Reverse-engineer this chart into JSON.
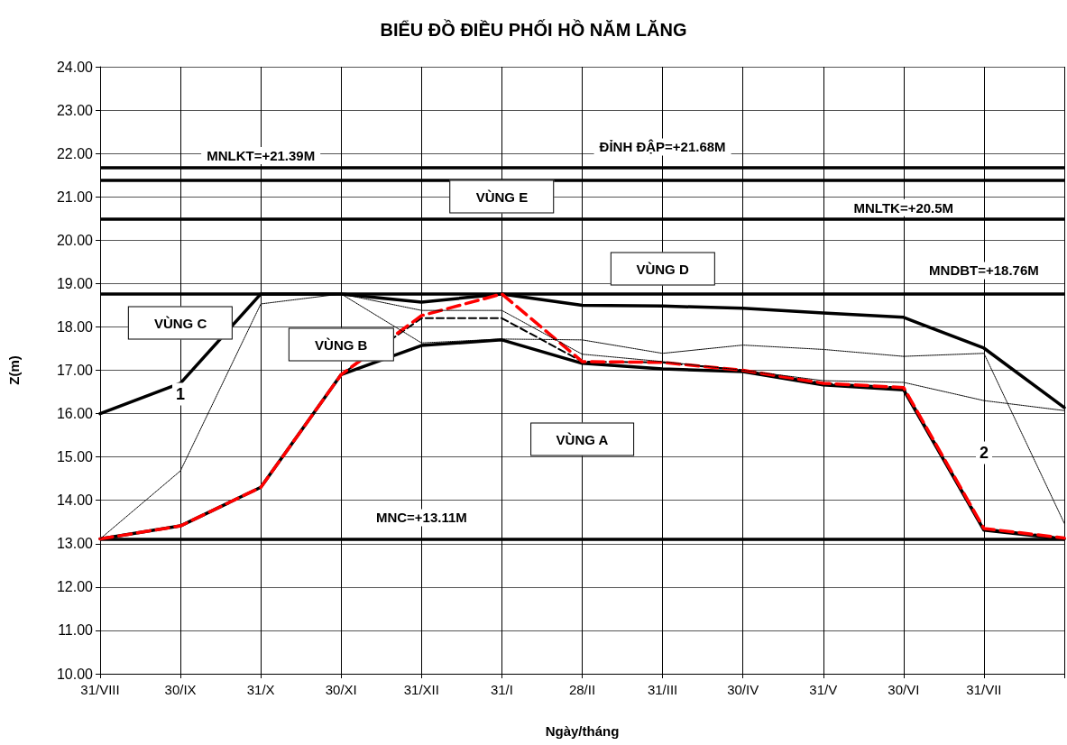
{
  "chart_data": {
    "type": "line",
    "title": "BIỂU ĐỒ ĐIỀU PHỐI HỒ NĂM LĂNG",
    "xlabel": "Ngày/tháng",
    "ylabel": "Z(m)",
    "categories": [
      "31/VIII",
      "30/IX",
      "31/X",
      "30/XI",
      "31/XII",
      "31/I",
      "28/II",
      "31/III",
      "30/IV",
      "31/V",
      "30/VI",
      "31/VII",
      null
    ],
    "series": [
      {
        "color": "#000000",
        "line_style": "solid",
        "values": [
          16.0,
          16.7,
          18.76,
          18.76,
          18.57,
          18.76,
          18.5,
          18.48,
          18.43,
          18.32,
          18.22,
          17.51,
          16.14
        ]
      },
      {
        "color": "#000000",
        "line_style": "solid",
        "values": [
          13.11,
          13.41,
          14.3,
          16.9,
          17.57,
          17.7,
          17.16,
          17.03,
          16.97,
          16.66,
          16.55,
          13.31,
          13.11
        ]
      },
      {
        "color": "#000000",
        "line_style": "dashed",
        "values": [
          13.11,
          13.41,
          14.3,
          16.9,
          18.2,
          18.2,
          17.2,
          17.18,
          17.0,
          16.7,
          16.6,
          13.35,
          13.13
        ]
      },
      {
        "color": "#ff0000",
        "line_style": "dashed",
        "values": [
          13.11,
          13.41,
          14.3,
          16.9,
          18.26,
          18.76,
          17.2,
          17.18,
          17.0,
          16.7,
          16.6,
          13.35,
          13.13
        ]
      },
      {
        "color": "#000000",
        "line_style": "dotted",
        "values": [
          13.11,
          14.68,
          18.53,
          18.76,
          18.38,
          18.38,
          17.37,
          17.2,
          17.0,
          16.76,
          16.72,
          16.3,
          16.07
        ]
      },
      {
        "color": "#000000",
        "line_style": "dotted",
        "values": [
          null,
          null,
          null,
          18.76,
          17.63,
          17.72,
          17.7,
          17.39,
          17.58,
          17.48,
          17.32,
          17.39,
          13.47
        ]
      }
    ],
    "ylim": [
      10,
      24
    ],
    "yticks": [
      {
        "value": 10,
        "label": "10.00"
      },
      {
        "value": 11,
        "label": "11.00"
      },
      {
        "value": 12,
        "label": "12.00"
      },
      {
        "value": 13,
        "label": "13.00"
      },
      {
        "value": 14,
        "label": "14.00"
      },
      {
        "value": 15,
        "label": "15.00"
      },
      {
        "value": 16,
        "label": "16.00"
      },
      {
        "value": 17,
        "label": "17.00"
      },
      {
        "value": 18,
        "label": "18.00"
      },
      {
        "value": 19,
        "label": "19.00"
      },
      {
        "value": 20,
        "label": "20.00"
      },
      {
        "value": 21,
        "label": "21.00"
      },
      {
        "value": 22,
        "label": "22.00"
      },
      {
        "value": 23,
        "label": "23.00"
      },
      {
        "value": 24,
        "label": "24.00"
      }
    ],
    "grid": true,
    "marker": "none",
    "ref_lines": [
      {
        "axis": "y",
        "value": 21.68,
        "label": "ĐỈNH ĐẬP=+21.68M",
        "color": "#000000",
        "line_style": "solid"
      },
      {
        "axis": "y",
        "value": 21.39,
        "label": "MNLKT=+21.39M",
        "color": "#000000",
        "line_style": "solid"
      },
      {
        "axis": "y",
        "value": 20.5,
        "label": "MNLTK=+20.5M",
        "color": "#000000",
        "line_style": "solid"
      },
      {
        "axis": "y",
        "value": 18.76,
        "label": "MNDBT=+18.76M",
        "color": "#000000",
        "line_style": "solid"
      },
      {
        "axis": "y",
        "value": 13.11,
        "label": "MNC=+13.11M",
        "color": "#000000",
        "line_style": "solid"
      }
    ],
    "annotations": [
      "VÙNG E",
      "VÙNG D",
      "VÙNG C",
      "VÙNG B",
      "VÙNG A",
      "1",
      "2"
    ]
  }
}
